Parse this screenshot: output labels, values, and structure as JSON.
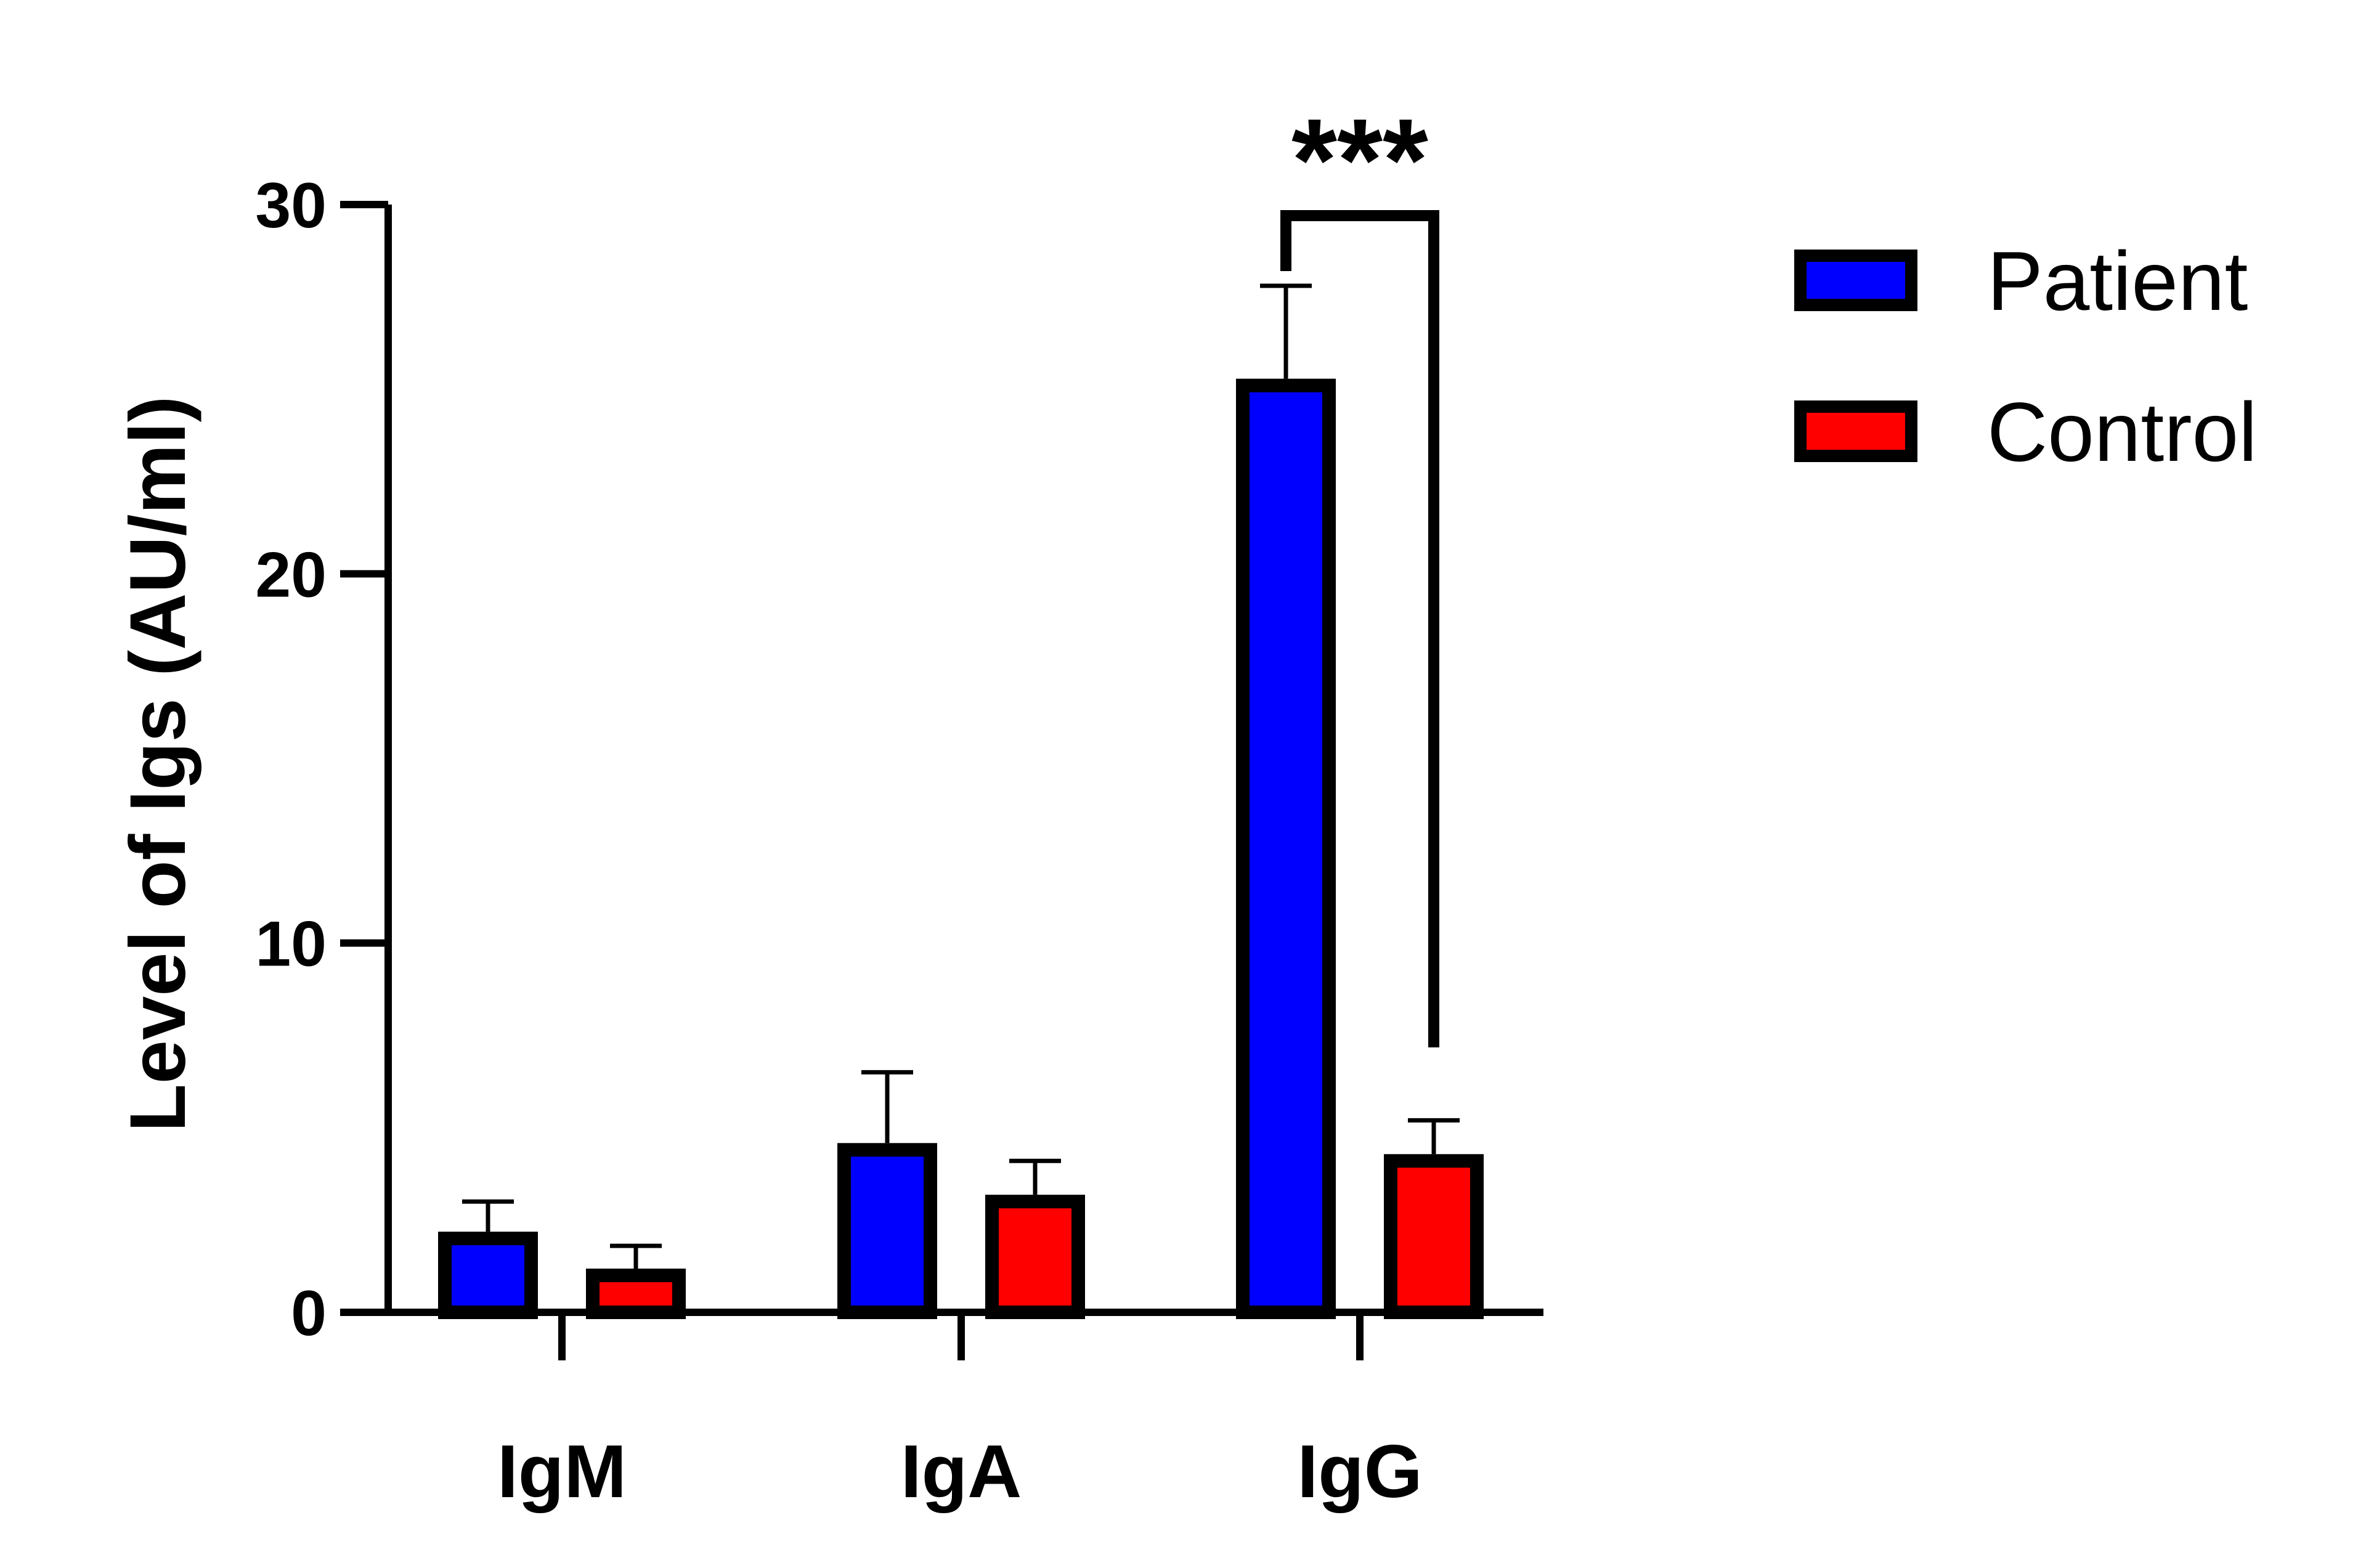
{
  "chart_data": {
    "type": "bar",
    "categories": [
      "IgM",
      "IgA",
      "IgG"
    ],
    "series": [
      {
        "name": "Patient",
        "values": [
          2.0,
          4.4,
          25.1
        ],
        "errors": [
          1.0,
          2.1,
          2.7
        ],
        "color": "#0000ff"
      },
      {
        "name": "Control",
        "values": [
          1.0,
          3.0,
          4.1
        ],
        "errors": [
          0.8,
          1.1,
          1.1
        ],
        "color": "#ff0000"
      }
    ],
    "ylabel": "Level of Igs (AU/ml)",
    "ylim": [
      0,
      30
    ],
    "yticks": [
      "0",
      "10",
      "20",
      "30"
    ],
    "grid": false,
    "legend_position": "top-right",
    "annotation": {
      "text": "***",
      "category": "IgG"
    }
  }
}
